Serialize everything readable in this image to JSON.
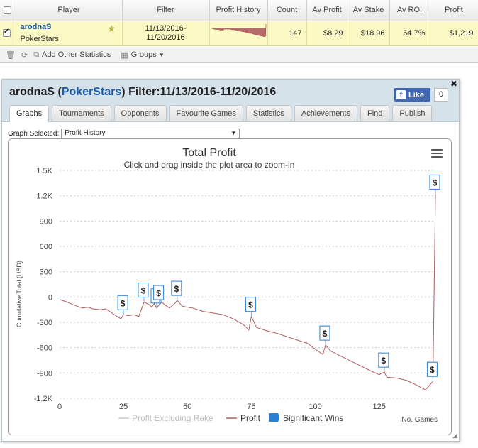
{
  "table": {
    "headers": [
      "",
      "Player",
      "Filter",
      "Profit History",
      "Count",
      "Av Profit",
      "Av Stake",
      "Av ROI",
      "Profit"
    ],
    "row": {
      "player": "arodnaS",
      "site": "PokerStars",
      "filter_line1": "11/13/2016-",
      "filter_line2": "11/20/2016",
      "count": "147",
      "av_profit": "$8.29",
      "av_stake": "$18.96",
      "av_roi": "64.7%",
      "profit": "$1,219"
    }
  },
  "toolbar": {
    "add_stats_label": "Add Other Statistics",
    "groups_label": "Groups"
  },
  "panel": {
    "title_player": "arodnaS",
    "title_site": "PokerStars",
    "title_filter": "Filter:11/13/2016-11/20/2016",
    "like_label": "Like",
    "like_count": "0",
    "tabs": [
      "Graphs",
      "Tournaments",
      "Opponents",
      "Favourite Games",
      "Statistics",
      "Achievements",
      "Find",
      "Publish"
    ],
    "graph_selected_label": "Graph Selected:",
    "graph_selected_value": "Profit History"
  },
  "chart_data": {
    "type": "line",
    "title": "Total Profit",
    "subtitle": "Click and drag inside the plot area to zoom-in",
    "xlabel": "No. Games",
    "ylabel": "Cumulative Total (USD)",
    "xlim": [
      0,
      147
    ],
    "ylim": [
      -1200,
      1500
    ],
    "x_ticks": [
      0,
      25,
      50,
      75,
      100,
      125
    ],
    "y_ticks": [
      1500,
      1200,
      900,
      600,
      300,
      0,
      -300,
      -600,
      -900,
      -1200
    ],
    "y_tick_labels": [
      "1.5K",
      "1.2K",
      "900",
      "600",
      "300",
      "0",
      "-300",
      "-600",
      "-900",
      "-1.2K"
    ],
    "legend": [
      "Profit Excluding Rake",
      "Profit",
      "Significant Wins"
    ],
    "legend_position": "bottom",
    "grid": "horizontal-dashed",
    "colors": {
      "profit": "#b05a5a",
      "profit_excl_rake": "#cccccc",
      "significant": "#2a7fd4"
    },
    "series": [
      {
        "name": "Profit",
        "points": [
          [
            0,
            -30
          ],
          [
            3,
            -60
          ],
          [
            6,
            -100
          ],
          [
            9,
            -130
          ],
          [
            11,
            -120
          ],
          [
            13,
            -140
          ],
          [
            16,
            -150
          ],
          [
            18,
            -140
          ],
          [
            20,
            -180
          ],
          [
            22,
            -220
          ],
          [
            24,
            -260
          ],
          [
            25,
            -210
          ],
          [
            27,
            -220
          ],
          [
            29,
            -210
          ],
          [
            31,
            -230
          ],
          [
            33,
            -60
          ],
          [
            35,
            -90
          ],
          [
            36,
            -120
          ],
          [
            37,
            -80
          ],
          [
            38,
            -130
          ],
          [
            39,
            -90
          ],
          [
            40,
            -60
          ],
          [
            41,
            -90
          ],
          [
            43,
            -130
          ],
          [
            45,
            -80
          ],
          [
            46,
            -40
          ],
          [
            48,
            -110
          ],
          [
            52,
            -130
          ],
          [
            56,
            -170
          ],
          [
            60,
            -190
          ],
          [
            64,
            -210
          ],
          [
            68,
            -260
          ],
          [
            72,
            -330
          ],
          [
            74,
            -390
          ],
          [
            75,
            -230
          ],
          [
            77,
            -360
          ],
          [
            81,
            -400
          ],
          [
            85,
            -430
          ],
          [
            89,
            -470
          ],
          [
            93,
            -510
          ],
          [
            97,
            -550
          ],
          [
            101,
            -640
          ],
          [
            103,
            -680
          ],
          [
            104,
            -570
          ],
          [
            106,
            -640
          ],
          [
            110,
            -700
          ],
          [
            114,
            -760
          ],
          [
            118,
            -820
          ],
          [
            122,
            -880
          ],
          [
            125,
            -920
          ],
          [
            127,
            -890
          ],
          [
            128,
            -950
          ],
          [
            132,
            -960
          ],
          [
            136,
            -990
          ],
          [
            140,
            -1050
          ],
          [
            143,
            -1100
          ],
          [
            144,
            -1070
          ],
          [
            146,
            -1000
          ],
          [
            147,
            1219
          ]
        ]
      }
    ],
    "significant_wins": [
      [
        25,
        -210
      ],
      [
        33,
        -60
      ],
      [
        38,
        -130
      ],
      [
        39,
        -90
      ],
      [
        46,
        -40
      ],
      [
        75,
        -230
      ],
      [
        104,
        -570
      ],
      [
        127,
        -890
      ],
      [
        146,
        -1000
      ],
      [
        147,
        1219
      ]
    ]
  }
}
